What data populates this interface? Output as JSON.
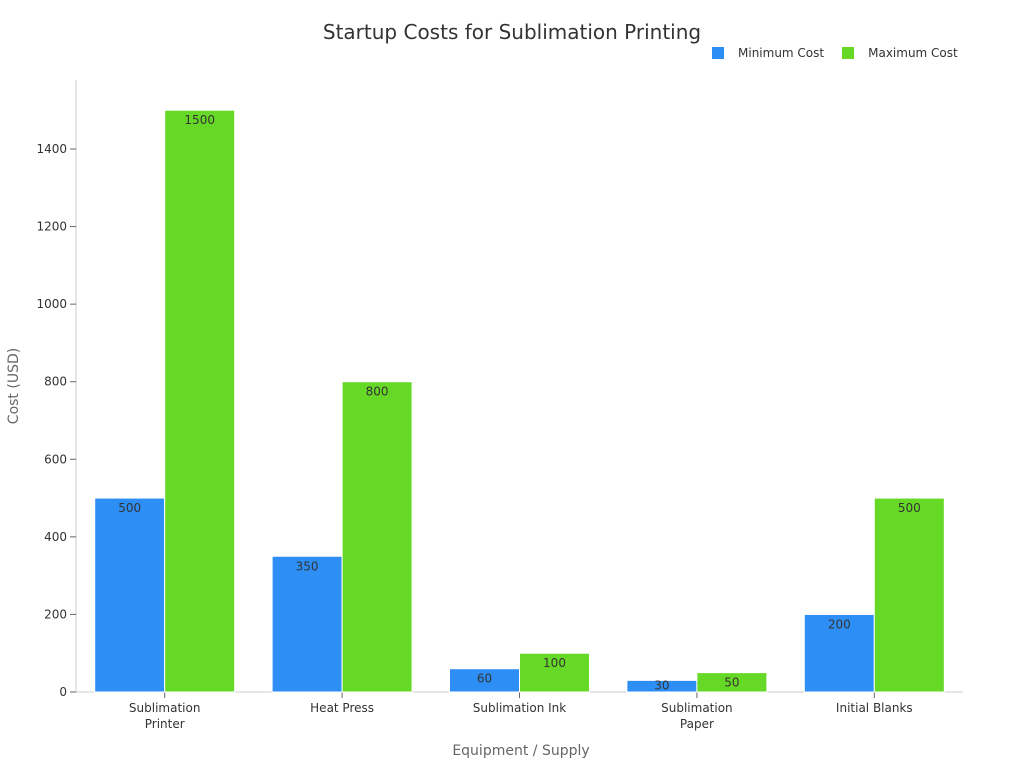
{
  "chart_data": {
    "type": "bar",
    "title": "Startup Costs for Sublimation Printing",
    "xlabel": "Equipment / Supply",
    "ylabel": "Cost (USD)",
    "categories": [
      "Sublimation Printer",
      "Heat Press",
      "Sublimation Ink",
      "Sublimation Paper",
      "Initial Blanks"
    ],
    "category_lines": [
      [
        "Sublimation",
        "Printer"
      ],
      [
        "Heat Press"
      ],
      [
        "Sublimation Ink"
      ],
      [
        "Sublimation",
        "Paper"
      ],
      [
        "Initial Blanks"
      ]
    ],
    "series": [
      {
        "name": "Minimum Cost",
        "color": "#2d8ff5",
        "values": [
          500,
          350,
          60,
          30,
          200
        ]
      },
      {
        "name": "Maximum Cost",
        "color": "#66d926",
        "values": [
          1500,
          800,
          100,
          50,
          500
        ]
      }
    ],
    "yticks": [
      0,
      200,
      400,
      600,
      800,
      1000,
      1200,
      1400
    ],
    "ylim": [
      0,
      1580
    ],
    "grid": false,
    "legend_position": "top-right"
  },
  "legend": {
    "min_label": "Minimum Cost",
    "max_label": "Maximum Cost"
  }
}
